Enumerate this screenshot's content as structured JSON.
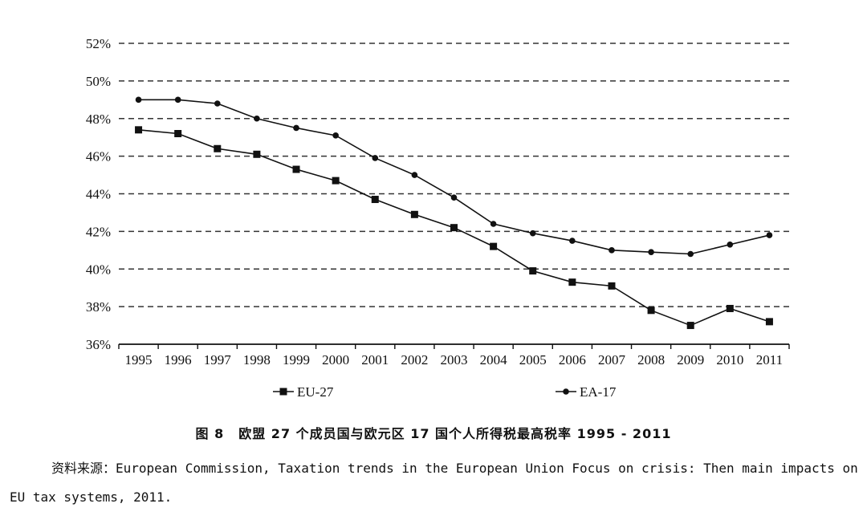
{
  "chart_data": {
    "type": "line",
    "title": "",
    "xlabel": "",
    "ylabel": "",
    "x": [
      "1995",
      "1996",
      "1997",
      "1998",
      "1999",
      "2000",
      "2001",
      "2002",
      "2003",
      "2004",
      "2005",
      "2006",
      "2007",
      "2008",
      "2009",
      "2010",
      "2011"
    ],
    "ylim": [
      36,
      52
    ],
    "yticks": [
      "52%",
      "50%",
      "48%",
      "46%",
      "44%",
      "42%",
      "40%",
      "38%",
      "36%"
    ],
    "ytick_values": [
      52,
      50,
      48,
      46,
      44,
      42,
      40,
      38,
      36
    ],
    "grid": "horizontal dashed",
    "legend_placement": "bottom",
    "series": [
      {
        "name": "EU-27",
        "marker": "square",
        "values": [
          47.4,
          47.2,
          46.4,
          46.1,
          45.3,
          44.7,
          43.7,
          42.9,
          42.2,
          41.2,
          39.9,
          39.3,
          39.1,
          37.8,
          37.0,
          37.9,
          37.2
        ]
      },
      {
        "name": "EA-17",
        "marker": "circle",
        "values": [
          49.0,
          49.0,
          48.8,
          48.0,
          47.5,
          47.1,
          45.9,
          45.0,
          43.8,
          42.4,
          41.9,
          41.5,
          41.0,
          40.9,
          40.8,
          41.3,
          41.8
        ]
      }
    ]
  },
  "caption": {
    "figure_number": "图 8",
    "text": "欧盟 27 个成员国与欧元区 17 国个人所得税最高税率 1995 - 2011"
  },
  "source_note": "资料来源：European Commission, Taxation trends in the European Union Focus on crisis: Then main impacts on EU tax systems, 2011.",
  "colors": {
    "line": "#111111",
    "grid": "#333333",
    "background": "#ffffff"
  }
}
